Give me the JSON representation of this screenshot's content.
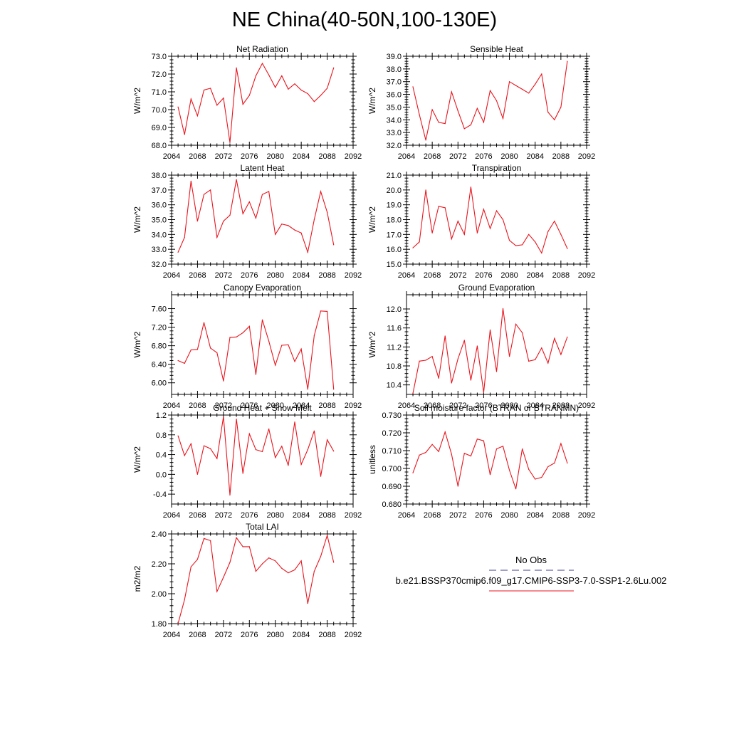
{
  "title": "NE China(40-50N,100-130E)",
  "line_color": "#e8141c",
  "obs_color": "#3c3c8c",
  "legend": {
    "obs_label": "No Obs",
    "model_label": "b.e21.BSSP370cmip6.f09_g17.CMIP6-SSP3-7.0-SSP1-2.6Lu.002"
  },
  "chart_data": [
    {
      "type": "line",
      "title": "Net Radiation",
      "ylabel": "W/m^2",
      "xlim": [
        2064,
        2092
      ],
      "ylim": [
        68.0,
        73.0
      ],
      "xticks": [
        "2064",
        "2068",
        "2072",
        "2076",
        "2080",
        "2084",
        "2088",
        "2092"
      ],
      "yticks": [
        68.0,
        69.0,
        70.0,
        71.0,
        72.0,
        73.0
      ],
      "ydec": 1,
      "x": [
        2065,
        2066,
        2067,
        2068,
        2069,
        2070,
        2071,
        2072,
        2073,
        2074,
        2075,
        2076,
        2077,
        2078,
        2079,
        2080,
        2081,
        2082,
        2083,
        2084,
        2085,
        2086,
        2087,
        2088,
        2089
      ],
      "y": [
        70.15,
        68.6,
        70.6,
        69.65,
        71.1,
        71.2,
        70.25,
        70.65,
        68.15,
        72.35,
        70.3,
        70.8,
        71.9,
        72.6,
        71.95,
        71.25,
        71.9,
        71.15,
        71.45,
        71.1,
        70.9,
        70.45,
        70.8,
        71.2,
        72.35
      ]
    },
    {
      "type": "line",
      "title": "Sensible Heat",
      "ylabel": "W/m^2",
      "xlim": [
        2064,
        2092
      ],
      "ylim": [
        32.0,
        39.0
      ],
      "xticks": [
        "2064",
        "2068",
        "2072",
        "2076",
        "2080",
        "2084",
        "2088",
        "2092"
      ],
      "yticks": [
        32.0,
        33.0,
        34.0,
        35.0,
        36.0,
        37.0,
        38.0,
        39.0
      ],
      "ydec": 1,
      "x": [
        2065,
        2066,
        2067,
        2068,
        2069,
        2070,
        2071,
        2072,
        2073,
        2074,
        2075,
        2076,
        2077,
        2078,
        2079,
        2080,
        2081,
        2082,
        2083,
        2084,
        2085,
        2086,
        2087,
        2088,
        2089
      ],
      "y": [
        36.6,
        34.4,
        32.4,
        34.8,
        33.8,
        33.7,
        36.2,
        34.7,
        33.3,
        33.6,
        34.9,
        33.8,
        36.3,
        35.5,
        34.1,
        37.0,
        36.7,
        36.4,
        36.1,
        36.8,
        37.6,
        34.6,
        34.0,
        35.0,
        38.6
      ]
    },
    {
      "type": "line",
      "title": "Latent Heat",
      "ylabel": "W/m^2",
      "xlim": [
        2064,
        2092
      ],
      "ylim": [
        32.0,
        38.0
      ],
      "xticks": [
        "2064",
        "2068",
        "2072",
        "2076",
        "2080",
        "2084",
        "2088",
        "2092"
      ],
      "yticks": [
        32.0,
        33.0,
        34.0,
        35.0,
        36.0,
        37.0,
        38.0
      ],
      "ydec": 1,
      "x": [
        2065,
        2066,
        2067,
        2068,
        2069,
        2070,
        2071,
        2072,
        2073,
        2074,
        2075,
        2076,
        2077,
        2078,
        2079,
        2080,
        2081,
        2082,
        2083,
        2084,
        2085,
        2086,
        2087,
        2088,
        2089
      ],
      "y": [
        32.8,
        33.8,
        37.6,
        34.9,
        36.7,
        37.0,
        33.8,
        34.9,
        35.3,
        37.7,
        35.4,
        36.2,
        35.1,
        36.7,
        36.9,
        34.0,
        34.7,
        34.6,
        34.3,
        34.1,
        32.8,
        35.0,
        36.9,
        35.5,
        33.3
      ]
    },
    {
      "type": "line",
      "title": "Transpiration",
      "ylabel": "W/m^2",
      "xlim": [
        2064,
        2092
      ],
      "ylim": [
        15.0,
        21.0
      ],
      "xticks": [
        "2064",
        "2068",
        "2072",
        "2076",
        "2080",
        "2084",
        "2088",
        "2092"
      ],
      "yticks": [
        15.0,
        16.0,
        17.0,
        18.0,
        19.0,
        20.0,
        21.0
      ],
      "ydec": 1,
      "x": [
        2065,
        2066,
        2067,
        2068,
        2069,
        2070,
        2071,
        2072,
        2073,
        2074,
        2075,
        2076,
        2077,
        2078,
        2079,
        2080,
        2081,
        2082,
        2083,
        2084,
        2085,
        2086,
        2087,
        2088,
        2089
      ],
      "y": [
        16.1,
        16.5,
        20.0,
        17.1,
        18.9,
        18.8,
        16.7,
        17.9,
        17.0,
        20.2,
        17.1,
        18.7,
        17.4,
        18.6,
        18.0,
        16.6,
        16.25,
        16.3,
        17.0,
        16.5,
        15.75,
        17.2,
        17.9,
        17.0,
        16.05
      ]
    },
    {
      "type": "line",
      "title": "Canopy Evaporation",
      "ylabel": "W/m^2",
      "xlim": [
        2064,
        2092
      ],
      "ylim": [
        5.75,
        7.9
      ],
      "xticks": [
        "2064",
        "2068",
        "2072",
        "2076",
        "2080",
        "2084",
        "2088",
        "2092"
      ],
      "yticks": [
        6.0,
        6.4,
        6.8,
        7.2,
        7.6
      ],
      "ydec": 2,
      "x": [
        2065,
        2066,
        2067,
        2068,
        2069,
        2070,
        2071,
        2072,
        2073,
        2074,
        2075,
        2076,
        2077,
        2078,
        2079,
        2080,
        2081,
        2082,
        2083,
        2084,
        2085,
        2086,
        2087,
        2088,
        2089
      ],
      "y": [
        6.48,
        6.42,
        6.71,
        6.72,
        7.3,
        6.75,
        6.65,
        6.04,
        6.98,
        6.99,
        7.08,
        7.22,
        6.18,
        7.36,
        6.9,
        6.38,
        6.81,
        6.82,
        6.46,
        6.73,
        5.86,
        7.02,
        7.55,
        7.54,
        5.86
      ]
    },
    {
      "type": "line",
      "title": "Ground Evaporation",
      "ylabel": "W/m^2",
      "xlim": [
        2064,
        2092
      ],
      "ylim": [
        10.2,
        12.3
      ],
      "xticks": [
        "2064",
        "2068",
        "2072",
        "2076",
        "2080",
        "2084",
        "2088",
        "2092"
      ],
      "yticks": [
        10.4,
        10.8,
        11.2,
        11.6,
        12.0
      ],
      "ydec": 1,
      "x": [
        2065,
        2066,
        2067,
        2068,
        2069,
        2070,
        2071,
        2072,
        2073,
        2074,
        2075,
        2076,
        2077,
        2078,
        2079,
        2080,
        2081,
        2082,
        2083,
        2084,
        2085,
        2086,
        2087,
        2088,
        2089
      ],
      "y": [
        10.22,
        10.9,
        10.92,
        11.0,
        10.54,
        11.43,
        10.44,
        10.95,
        11.34,
        10.5,
        11.22,
        10.24,
        11.56,
        10.68,
        12.01,
        11.0,
        11.68,
        11.5,
        10.9,
        10.93,
        11.18,
        10.86,
        11.38,
        11.04,
        11.41
      ]
    },
    {
      "type": "line",
      "title": "Ground Heat + Snow Melt",
      "ylabel": "W/m^2",
      "xlim": [
        2064,
        2092
      ],
      "ylim": [
        -0.6,
        1.2
      ],
      "xticks": [
        "2064",
        "2068",
        "2072",
        "2076",
        "2080",
        "2084",
        "2088",
        "2092"
      ],
      "yticks": [
        -0.4,
        0.0,
        0.4,
        0.8,
        1.2
      ],
      "ydec": 1,
      "x": [
        2065,
        2066,
        2067,
        2068,
        2069,
        2070,
        2071,
        2072,
        2073,
        2074,
        2075,
        2076,
        2077,
        2078,
        2079,
        2080,
        2081,
        2082,
        2083,
        2084,
        2085,
        2086,
        2087,
        2088,
        2089
      ],
      "y": [
        0.78,
        0.38,
        0.62,
        0.0,
        0.58,
        0.52,
        0.32,
        1.17,
        -0.42,
        1.12,
        0.02,
        0.82,
        0.5,
        0.46,
        0.92,
        0.34,
        0.57,
        0.18,
        1.06,
        0.2,
        0.5,
        0.88,
        -0.04,
        0.7,
        0.47
      ]
    },
    {
      "type": "line",
      "title": "Soil moisture factor (BTRAN or BTRANMN)",
      "ylabel": "unitless",
      "xlim": [
        2064,
        2092
      ],
      "ylim": [
        0.68,
        0.73
      ],
      "xticks": [
        "2064",
        "2068",
        "2072",
        "2076",
        "2080",
        "2084",
        "2088",
        "2092"
      ],
      "yticks": [
        0.68,
        0.69,
        0.7,
        0.71,
        0.72,
        0.73
      ],
      "ydec": 3,
      "x": [
        2065,
        2066,
        2067,
        2068,
        2069,
        2070,
        2071,
        2072,
        2073,
        2074,
        2075,
        2076,
        2077,
        2078,
        2079,
        2080,
        2081,
        2082,
        2083,
        2084,
        2085,
        2086,
        2087,
        2088,
        2089
      ],
      "y": [
        0.6975,
        0.7075,
        0.709,
        0.7135,
        0.7095,
        0.7205,
        0.708,
        0.69,
        0.7085,
        0.707,
        0.7165,
        0.7155,
        0.6965,
        0.711,
        0.7125,
        0.699,
        0.6885,
        0.711,
        0.6995,
        0.694,
        0.695,
        0.701,
        0.703,
        0.714,
        0.703
      ]
    },
    {
      "type": "line",
      "title": "Total LAI",
      "ylabel": "m2/m2",
      "xlim": [
        2064,
        2092
      ],
      "ylim": [
        1.8,
        2.4
      ],
      "xticks": [
        "2064",
        "2068",
        "2072",
        "2076",
        "2080",
        "2084",
        "2088",
        "2092"
      ],
      "yticks": [
        1.8,
        2.0,
        2.2,
        2.4
      ],
      "ydec": 2,
      "x": [
        2065,
        2066,
        2067,
        2068,
        2069,
        2070,
        2071,
        2072,
        2073,
        2074,
        2075,
        2076,
        2077,
        2078,
        2079,
        2080,
        2081,
        2082,
        2083,
        2084,
        2085,
        2086,
        2087,
        2088,
        2089
      ],
      "y": [
        1.8,
        1.96,
        2.18,
        2.23,
        2.37,
        2.355,
        2.015,
        2.11,
        2.21,
        2.375,
        2.315,
        2.315,
        2.15,
        2.2,
        2.24,
        2.22,
        2.17,
        2.14,
        2.16,
        2.22,
        1.935,
        2.15,
        2.25,
        2.39,
        2.21
      ]
    }
  ]
}
